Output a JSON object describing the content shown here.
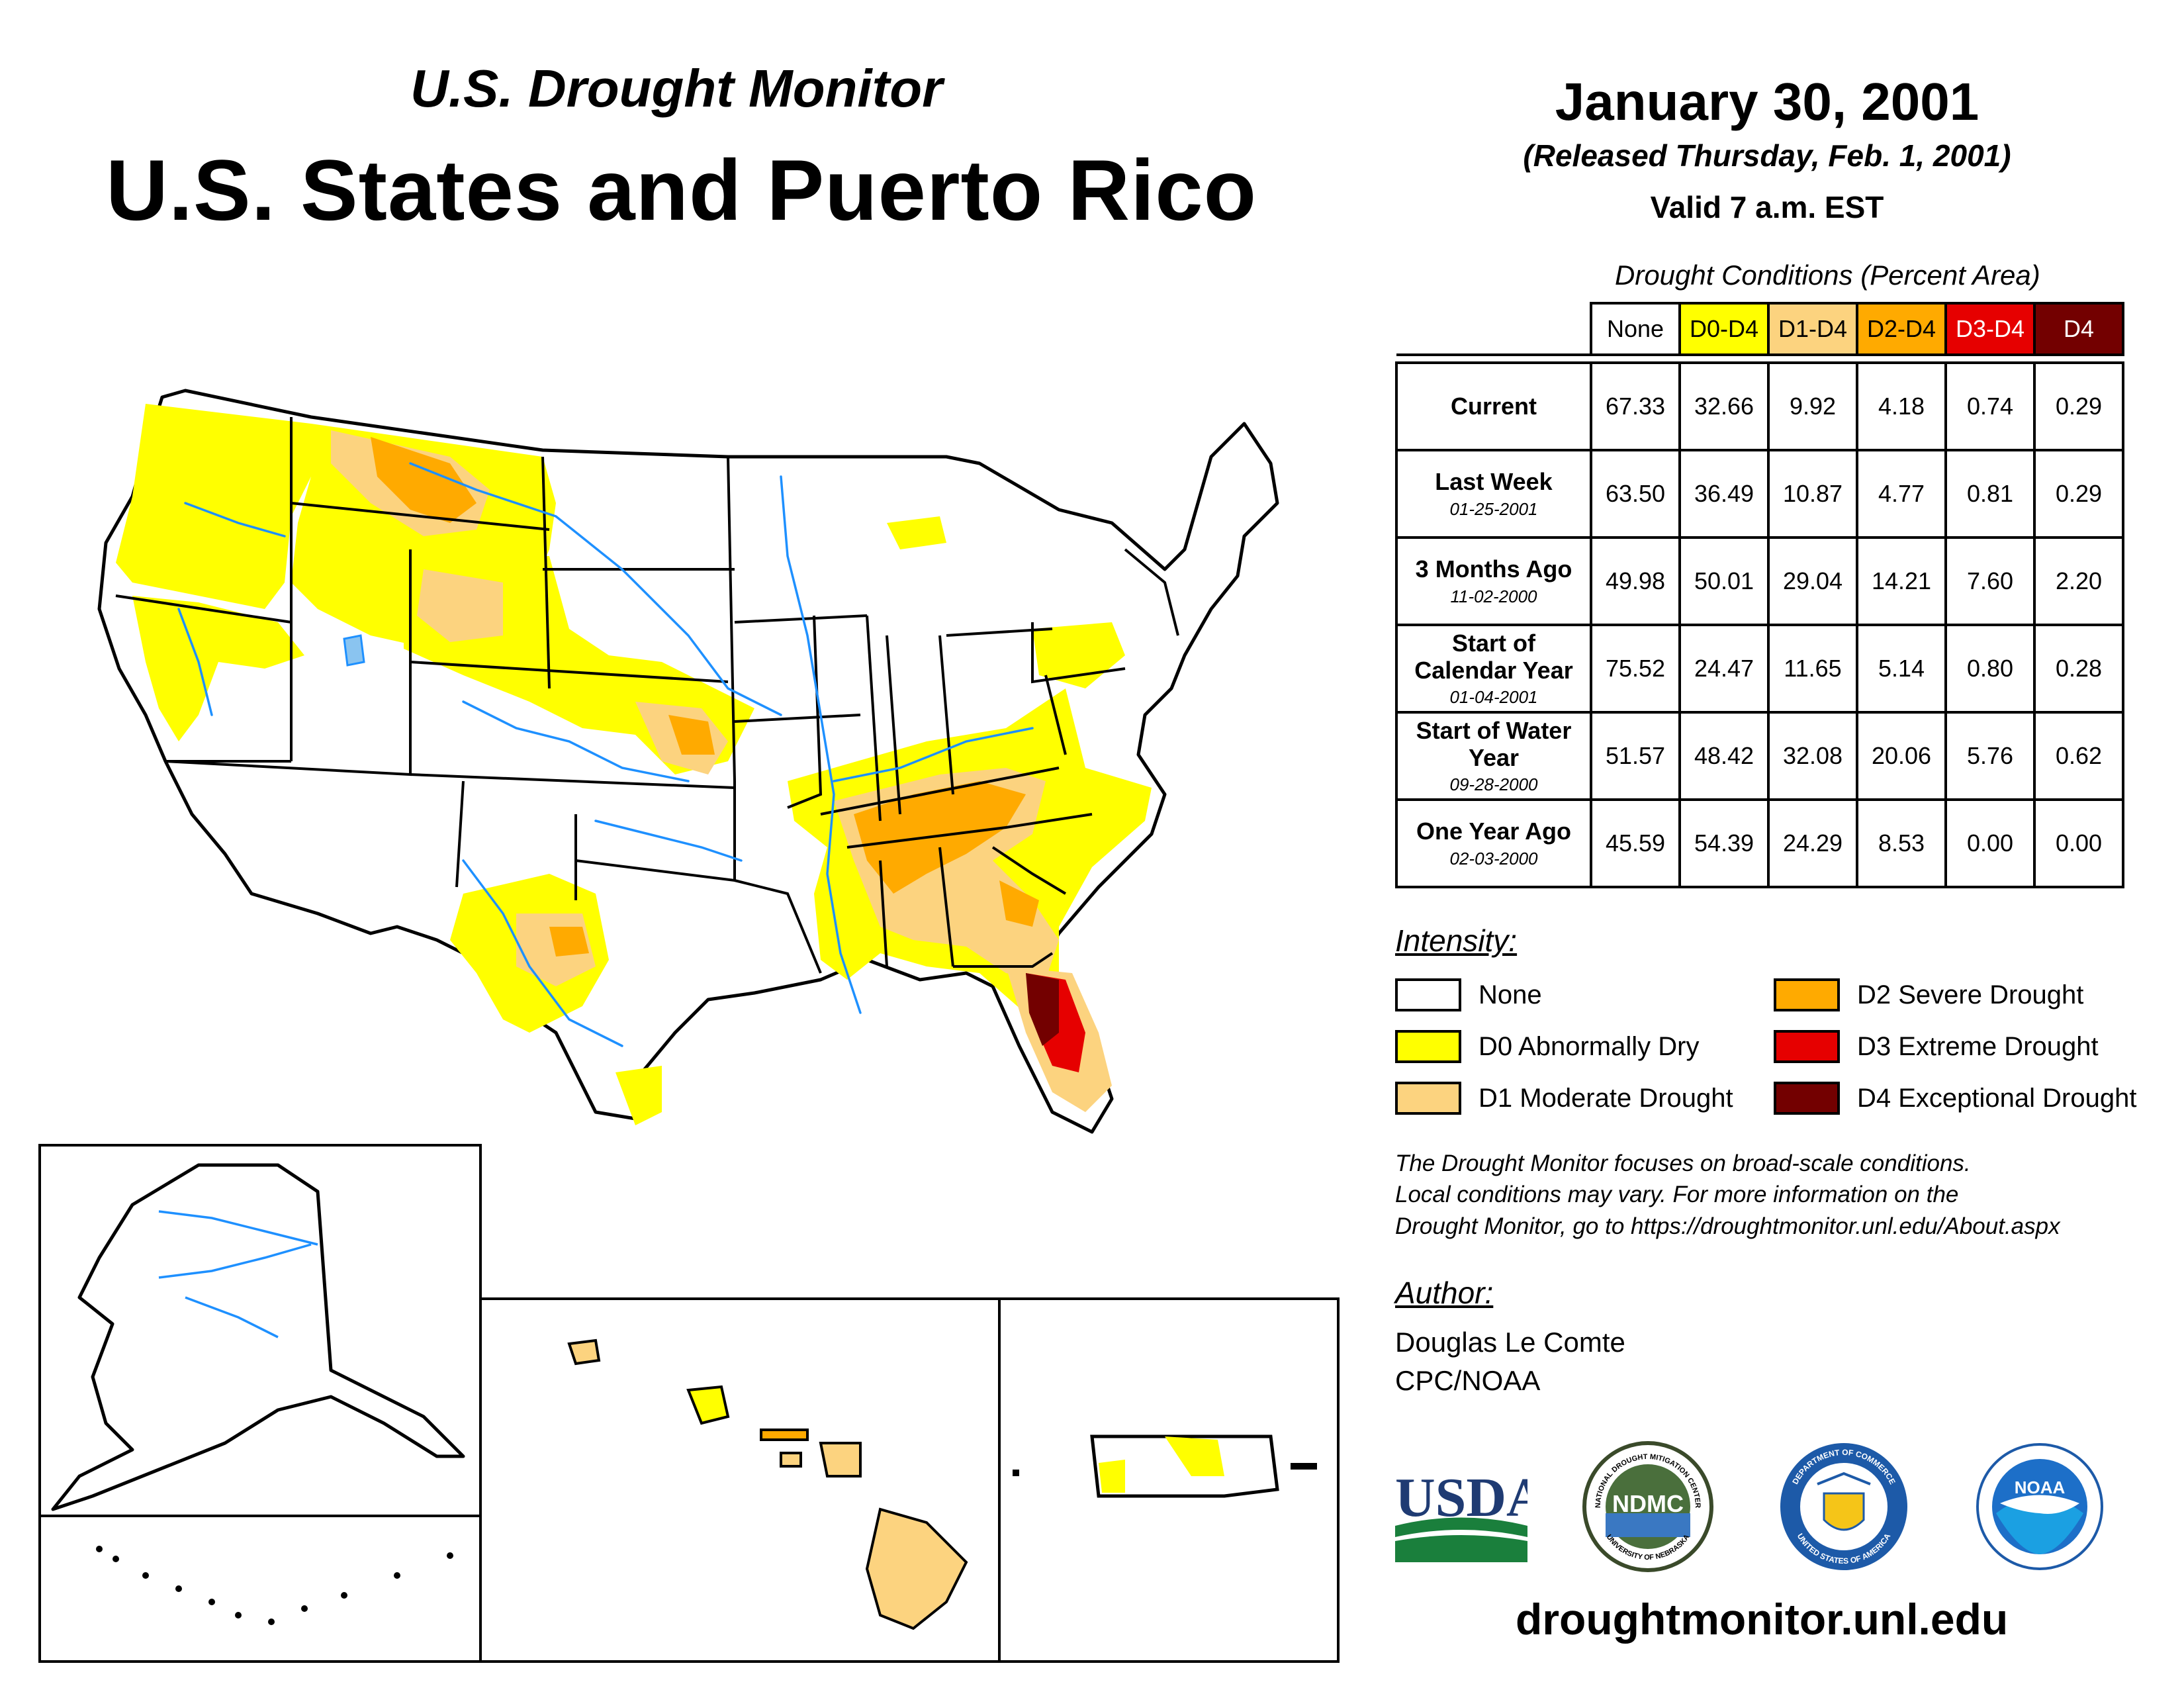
{
  "header": {
    "subtitle": "U.S. Drought Monitor",
    "title": "U.S. States and Puerto Rico",
    "date": "January 30, 2001",
    "released": "(Released Thursday, Feb. 1, 2001)",
    "valid": "Valid 7 a.m. EST"
  },
  "table": {
    "title": "Drought Conditions (Percent Area)",
    "columns": [
      "None",
      "D0-D4",
      "D1-D4",
      "D2-D4",
      "D3-D4",
      "D4"
    ],
    "rows": [
      {
        "label": "Current",
        "date": "",
        "values": [
          "67.33",
          "32.66",
          "9.92",
          "4.18",
          "0.74",
          "0.29"
        ]
      },
      {
        "label": "Last Week",
        "date": "01-25-2001",
        "values": [
          "63.50",
          "36.49",
          "10.87",
          "4.77",
          "0.81",
          "0.29"
        ]
      },
      {
        "label": "3 Months Ago",
        "date": "11-02-2000",
        "values": [
          "49.98",
          "50.01",
          "29.04",
          "14.21",
          "7.60",
          "2.20"
        ]
      },
      {
        "label": "Start of Calendar Year",
        "date": "01-04-2001",
        "values": [
          "75.52",
          "24.47",
          "11.65",
          "5.14",
          "0.80",
          "0.28"
        ]
      },
      {
        "label": "Start of Water Year",
        "date": "09-28-2000",
        "values": [
          "51.57",
          "48.42",
          "32.08",
          "20.06",
          "5.76",
          "0.62"
        ]
      },
      {
        "label": "One Year Ago",
        "date": "02-03-2000",
        "values": [
          "45.59",
          "54.39",
          "24.29",
          "8.53",
          "0.00",
          "0.00"
        ]
      }
    ]
  },
  "legend": {
    "title": "Intensity:",
    "items": [
      {
        "label": "None",
        "color": "#ffffff"
      },
      {
        "label": "D0 Abnormally Dry",
        "color": "#ffff00"
      },
      {
        "label": "D1 Moderate Drought",
        "color": "#fcd37f"
      },
      {
        "label": "D2 Severe Drought",
        "color": "#ffaa00"
      },
      {
        "label": "D3 Extreme Drought",
        "color": "#e60000"
      },
      {
        "label": "D4 Exceptional Drought",
        "color": "#730000"
      }
    ]
  },
  "note": {
    "line1": "The Drought Monitor focuses on broad-scale conditions.",
    "line2": "Local conditions may vary. For more information on the",
    "line3": "Drought Monitor, go to https://droughtmonitor.unl.edu/About.aspx"
  },
  "author": {
    "title": "Author:",
    "name": "Douglas Le Comte",
    "org": "CPC/NOAA"
  },
  "logos": {
    "usda": "USDA",
    "ndmc": "NDMC",
    "ndmc_ring": "NATIONAL DROUGHT MITIGATION CENTER",
    "ndmc_ring_bottom": "UNIVERSITY OF NEBRASKA",
    "commerce_ring": "DEPARTMENT OF COMMERCE",
    "commerce_ring_bottom": "UNITED STATES OF AMERICA",
    "noaa": "NOAA"
  },
  "footer": {
    "url": "droughtmonitor.unl.edu"
  },
  "colors": {
    "none": "#ffffff",
    "d0": "#ffff00",
    "d1": "#fcd37f",
    "d2": "#ffaa00",
    "d3": "#e60000",
    "d4": "#730000",
    "water": "#1e90ff"
  }
}
